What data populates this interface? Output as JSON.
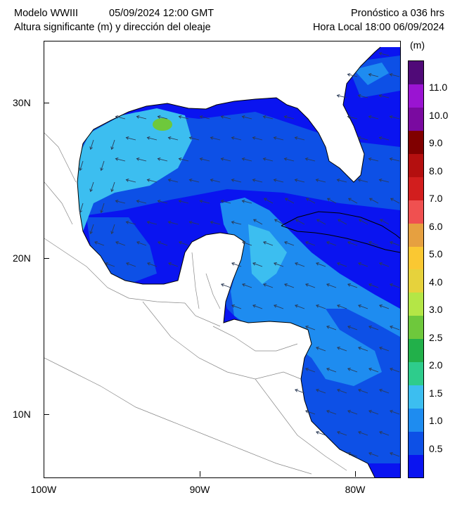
{
  "header": {
    "model": "Modelo WWIII",
    "run_time": "05/09/2024 12:00 GMT",
    "variable": "Altura significante (m) y dirección del oleaje",
    "forecast": "Pronóstico a 036 hrs",
    "local_time": "Hora Local 18:00 06/09/2024"
  },
  "axes": {
    "lat_labels": [
      "30N",
      "20N",
      "10N"
    ],
    "lat_values": [
      30,
      20,
      10
    ],
    "lon_labels": [
      "100W",
      "90W",
      "80W"
    ],
    "lon_values": [
      -100,
      -90,
      -80
    ],
    "lon_range": [
      -100,
      -77
    ],
    "lat_range": [
      6,
      34
    ]
  },
  "colorbar": {
    "unit": "(m)",
    "levels": [
      "0.5",
      "1.0",
      "1.5",
      "2.0",
      "2.5",
      "3.0",
      "4.0",
      "5.0",
      "6.0",
      "7.0",
      "8.0",
      "9.0",
      "10.0",
      "11.0"
    ],
    "colors": [
      "#0a14f0",
      "#0d50e6",
      "#1e8cf0",
      "#3cbef0",
      "#2ecc8c",
      "#22b04a",
      "#6ec83c",
      "#b4e646",
      "#e6d23c",
      "#fac832",
      "#e6a040",
      "#f05050",
      "#d21e1e",
      "#b40f0f",
      "#800000",
      "#7a0aa0",
      "#9a14d2",
      "#500a78"
    ]
  },
  "map": {
    "sea_colors": {
      "low": "#0a14f0",
      "mid": "#0d50e6",
      "high": "#3cbef0",
      "peak": "#6ec83c"
    },
    "land_color": "#ffffff"
  }
}
